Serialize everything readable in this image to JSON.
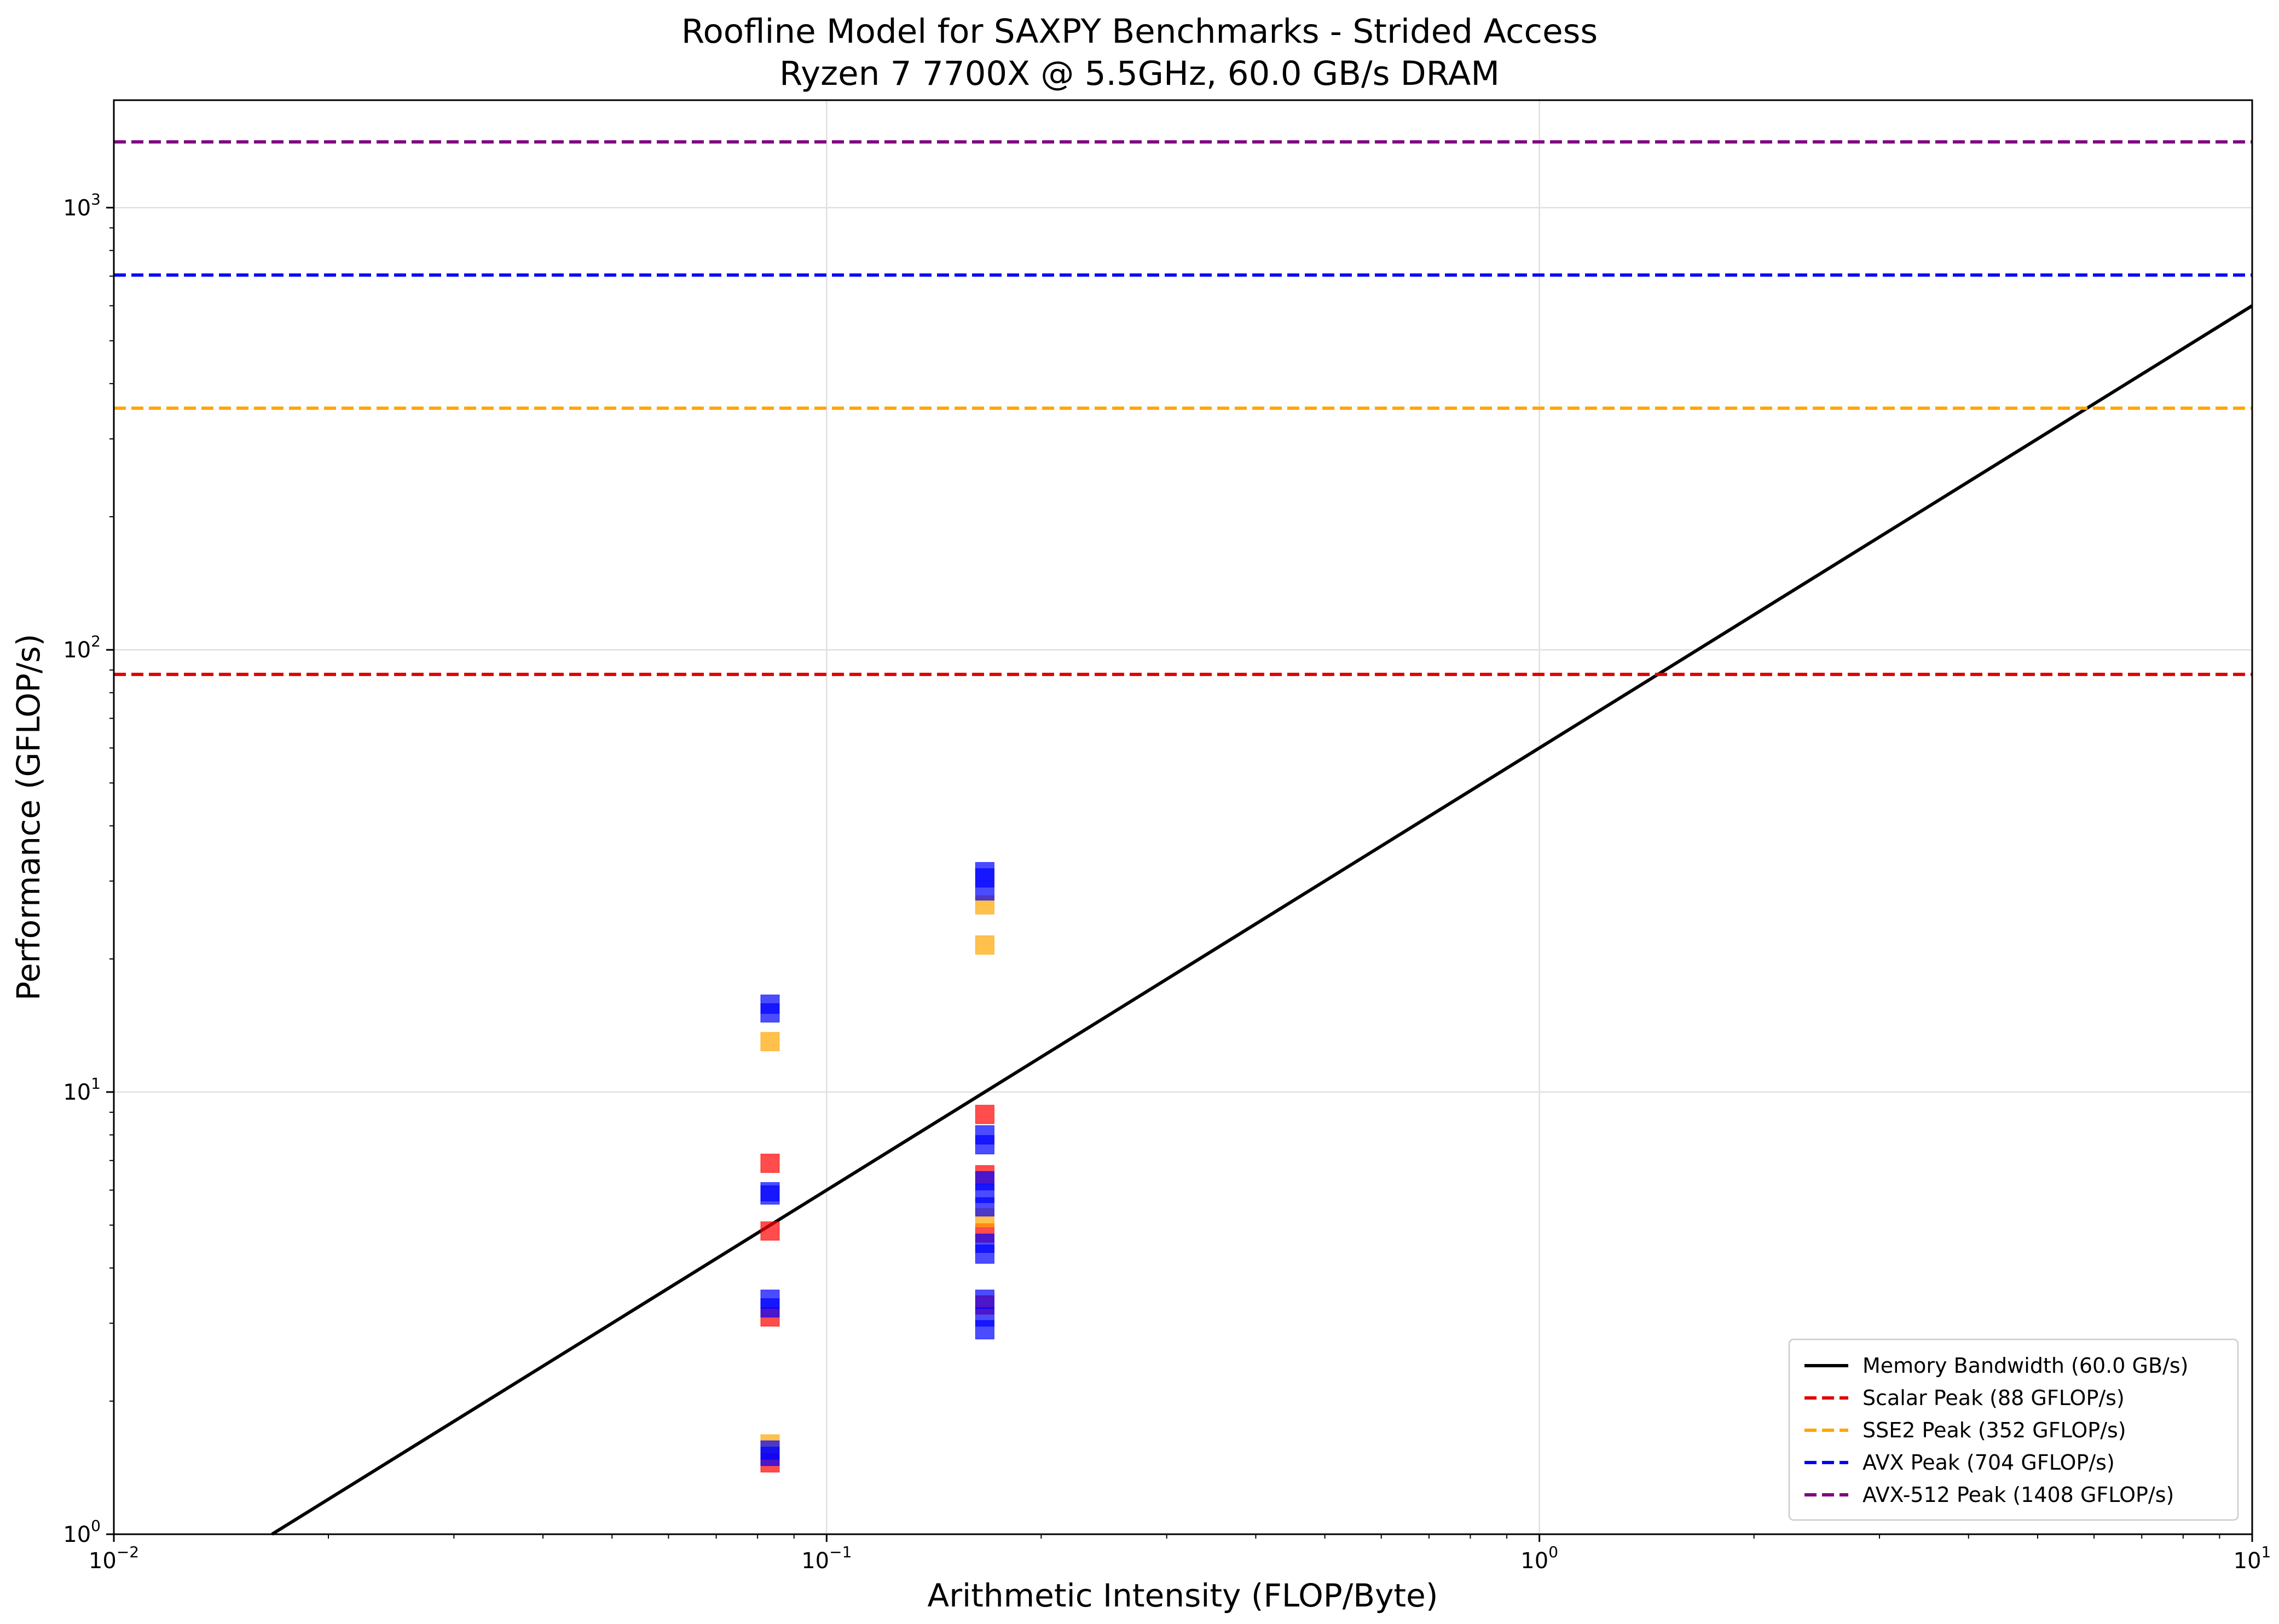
{
  "chart_data": {
    "type": "scatter",
    "title": "Roofline Model for SAXPY Benchmarks - Strided Access",
    "subtitle": "Ryzen 7 7700X @ 5.5GHz, 60.0 GB/s DRAM",
    "xlabel": "Arithmetic Intensity (FLOP/Byte)",
    "ylabel": "Performance (GFLOP/s)",
    "xscale": "log",
    "yscale": "log",
    "xlim": [
      0.01,
      10
    ],
    "ylim": [
      1,
      1750
    ],
    "grid": true,
    "legend_position": "lower-right",
    "x_ticks": [
      {
        "value": 0.01,
        "base": "10",
        "exp": "−2"
      },
      {
        "value": 0.1,
        "base": "10",
        "exp": "−1"
      },
      {
        "value": 1,
        "base": "10",
        "exp": "0"
      },
      {
        "value": 10,
        "base": "10",
        "exp": "1"
      }
    ],
    "y_ticks": [
      {
        "value": 1,
        "base": "10",
        "exp": "0"
      },
      {
        "value": 10,
        "base": "10",
        "exp": "1"
      },
      {
        "value": 100,
        "base": "10",
        "exp": "2"
      },
      {
        "value": 1000,
        "base": "10",
        "exp": "3"
      }
    ],
    "lines": [
      {
        "name": "Memory Bandwidth (60.0 GB/s)",
        "kind": "bandwidth",
        "bandwidth": 60.0,
        "color": "#000000",
        "dash": false
      },
      {
        "name": "Scalar Peak (88 GFLOP/s)",
        "kind": "peak",
        "value": 88,
        "color": "#e00000",
        "dash": true
      },
      {
        "name": "SSE2 Peak (352 GFLOP/s)",
        "kind": "peak",
        "value": 352,
        "color": "#ffa500",
        "dash": true
      },
      {
        "name": "AVX Peak (704 GFLOP/s)",
        "kind": "peak",
        "value": 704,
        "color": "#0000ff",
        "dash": true
      },
      {
        "name": "AVX-512 Peak (1408 GFLOP/s)",
        "kind": "peak",
        "value": 1408,
        "color": "#800080",
        "dash": true
      }
    ],
    "points": [
      {
        "x": 0.0833,
        "y": 1.45,
        "color": "#ff0000"
      },
      {
        "x": 0.0833,
        "y": 3.1,
        "color": "#ff0000"
      },
      {
        "x": 0.0833,
        "y": 4.85,
        "color": "#ff0000"
      },
      {
        "x": 0.0833,
        "y": 6.9,
        "color": "#ff0000"
      },
      {
        "x": 0.0833,
        "y": 1.6,
        "color": "#ffa500"
      },
      {
        "x": 0.0833,
        "y": 13.0,
        "color": "#ffa500"
      },
      {
        "x": 0.0833,
        "y": 1.5,
        "color": "#0000ff"
      },
      {
        "x": 0.0833,
        "y": 1.55,
        "color": "#0000ff"
      },
      {
        "x": 0.0833,
        "y": 3.25,
        "color": "#0000ff"
      },
      {
        "x": 0.0833,
        "y": 3.4,
        "color": "#0000ff"
      },
      {
        "x": 0.0833,
        "y": 5.85,
        "color": "#0000ff"
      },
      {
        "x": 0.0833,
        "y": 5.95,
        "color": "#0000ff"
      },
      {
        "x": 0.0833,
        "y": 15.1,
        "color": "#0000ff"
      },
      {
        "x": 0.0833,
        "y": 15.8,
        "color": "#0000ff"
      },
      {
        "x": 0.1667,
        "y": 3.3,
        "color": "#ff0000"
      },
      {
        "x": 0.1667,
        "y": 4.8,
        "color": "#ff0000"
      },
      {
        "x": 0.1667,
        "y": 6.5,
        "color": "#ff0000"
      },
      {
        "x": 0.1667,
        "y": 8.9,
        "color": "#ff0000"
      },
      {
        "x": 0.1667,
        "y": 5.2,
        "color": "#ffa500"
      },
      {
        "x": 0.1667,
        "y": 21.5,
        "color": "#ffa500"
      },
      {
        "x": 0.1667,
        "y": 26.5,
        "color": "#ffa500"
      },
      {
        "x": 0.1667,
        "y": 2.9,
        "color": "#0000ff"
      },
      {
        "x": 0.1667,
        "y": 3.1,
        "color": "#0000ff"
      },
      {
        "x": 0.1667,
        "y": 3.4,
        "color": "#0000ff"
      },
      {
        "x": 0.1667,
        "y": 4.3,
        "color": "#0000ff"
      },
      {
        "x": 0.1667,
        "y": 4.55,
        "color": "#0000ff"
      },
      {
        "x": 0.1667,
        "y": 5.5,
        "color": "#0000ff"
      },
      {
        "x": 0.1667,
        "y": 5.9,
        "color": "#0000ff"
      },
      {
        "x": 0.1667,
        "y": 6.3,
        "color": "#0000ff"
      },
      {
        "x": 0.1667,
        "y": 7.6,
        "color": "#0000ff"
      },
      {
        "x": 0.1667,
        "y": 8.0,
        "color": "#0000ff"
      },
      {
        "x": 0.1667,
        "y": 28.5,
        "color": "#0000ff"
      },
      {
        "x": 0.1667,
        "y": 30.5,
        "color": "#0000ff"
      },
      {
        "x": 0.1667,
        "y": 31.5,
        "color": "#0000ff"
      }
    ]
  }
}
